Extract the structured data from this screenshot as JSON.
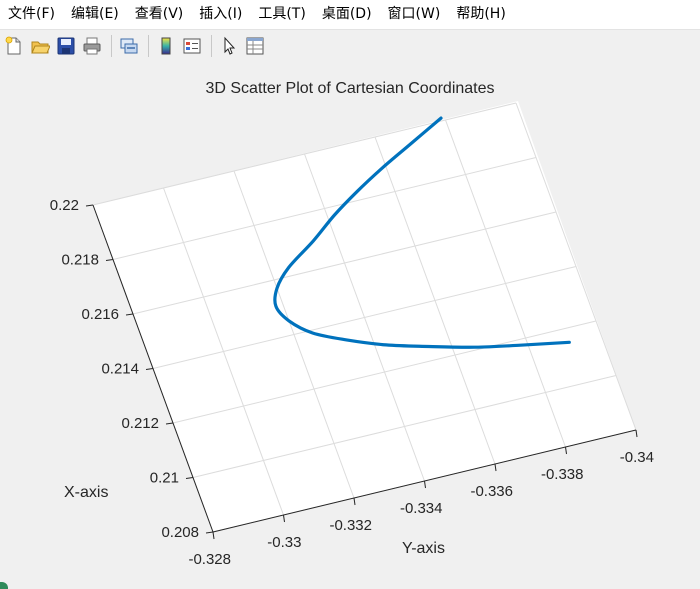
{
  "menu": [
    {
      "label": "文件(F)"
    },
    {
      "label": "编辑(E)"
    },
    {
      "label": "查看(V)"
    },
    {
      "label": "插入(I)"
    },
    {
      "label": "工具(T)"
    },
    {
      "label": "桌面(D)"
    },
    {
      "label": "窗口(W)"
    },
    {
      "label": "帮助(H)"
    }
  ],
  "toolbar": [
    {
      "icon": "new-figure-icon"
    },
    {
      "icon": "open-file-icon"
    },
    {
      "icon": "save-icon"
    },
    {
      "icon": "print-icon"
    },
    {
      "icon": "link-figure-icon"
    },
    {
      "icon": "colorbar-icon"
    },
    {
      "icon": "legend-icon"
    },
    {
      "icon": "pointer-icon"
    },
    {
      "icon": "property-inspector-icon"
    }
  ],
  "colors": {
    "line": "#0072BD",
    "grid": "#dcdcdc",
    "axis": "#262626"
  },
  "chart_data": {
    "type": "scatter",
    "title": "3D Scatter Plot of Cartesian Coordinates",
    "xlabel": "X-axis",
    "ylabel": "Y-axis",
    "x_ticks": [
      "0.208",
      "0.21",
      "0.212",
      "0.214",
      "0.216",
      "0.218",
      "0.22"
    ],
    "y_ticks": [
      "-0.328",
      "-0.33",
      "-0.332",
      "-0.334",
      "-0.336",
      "-0.338",
      "-0.34"
    ],
    "xlim": [
      0.208,
      0.22
    ],
    "ylim": [
      -0.34,
      -0.328
    ],
    "grid": true,
    "series": [
      {
        "x": [
          0.2201,
          0.2195,
          0.2189,
          0.2183,
          0.2177,
          0.217,
          0.2163,
          0.2157,
          0.2151,
          0.2145,
          0.2139,
          0.2134,
          0.2129,
          0.2125,
          0.2121,
          0.2118,
          0.2115
        ],
        "y": [
          -0.3379,
          -0.3369,
          -0.3359,
          -0.335,
          -0.3342,
          -0.3334,
          -0.3325,
          -0.332,
          -0.3318,
          -0.332,
          -0.3325,
          -0.3333,
          -0.3343,
          -0.3354,
          -0.3366,
          -0.3378,
          -0.3391
        ]
      }
    ]
  }
}
